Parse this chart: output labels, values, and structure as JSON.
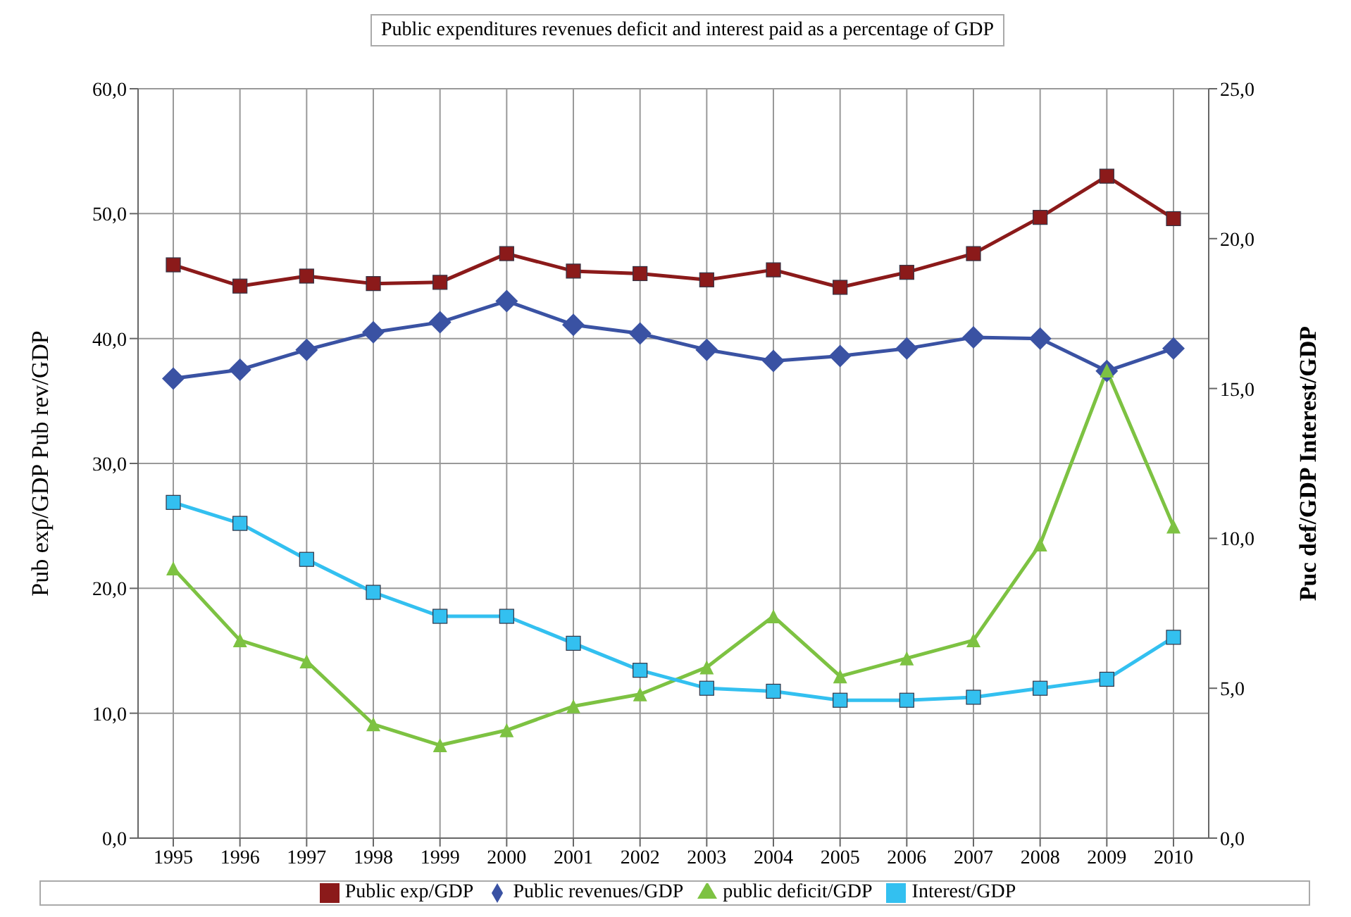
{
  "chart_data": {
    "type": "line",
    "title": "Public expenditures revenues deficit and interest paid as a percentage of GDP",
    "ylabel": "Pub exp/GDP Pub rev/GDP",
    "y2label": "Puc def/GDP Interest/GDP",
    "categories": [
      "1995",
      "1996",
      "1997",
      "1998",
      "1999",
      "2000",
      "2001",
      "2002",
      "2003",
      "2004",
      "2005",
      "2006",
      "2007",
      "2008",
      "2009",
      "2010"
    ],
    "series": [
      {
        "name": "Public exp/GDP",
        "color": "#8b1a1a",
        "marker": "square",
        "values": [
          45.9,
          44.2,
          45.0,
          44.4,
          44.5,
          46.8,
          45.4,
          45.2,
          44.7,
          45.5,
          44.1,
          45.3,
          46.8,
          49.7,
          53.0,
          49.6
        ]
      },
      {
        "name": "Public revenues/GDP",
        "color": "#3a52a3",
        "marker": "diamond",
        "values": [
          36.8,
          37.5,
          39.1,
          40.5,
          41.3,
          43.0,
          41.1,
          40.4,
          39.1,
          38.2,
          38.6,
          39.2,
          40.1,
          40.0,
          37.4,
          39.2
        ]
      },
      {
        "name": "public deficit/GDP",
        "color": "#7dc242",
        "marker": "triangle",
        "axis": "y2",
        "values": [
          9.0,
          6.6,
          5.9,
          3.8,
          3.1,
          3.6,
          4.4,
          4.8,
          5.7,
          7.4,
          5.4,
          6.0,
          6.6,
          9.8,
          15.6,
          10.4
        ]
      },
      {
        "name": "Interest/GDP",
        "color": "#33c0f0",
        "marker": "square",
        "axis": "y2",
        "values": [
          11.2,
          10.5,
          9.3,
          8.2,
          7.4,
          7.4,
          6.5,
          5.6,
          5.0,
          4.9,
          4.6,
          4.6,
          4.7,
          5.0,
          5.3,
          6.7
        ]
      }
    ],
    "ylim": [
      0,
      60
    ],
    "yticks": [
      {
        "value": 0,
        "label": "0,0"
      },
      {
        "value": 10,
        "label": "10,0"
      },
      {
        "value": 20,
        "label": "20,0"
      },
      {
        "value": 30,
        "label": "30,0"
      },
      {
        "value": 40,
        "label": "40,0"
      },
      {
        "value": 50,
        "label": "50,0"
      },
      {
        "value": 60,
        "label": "60,0"
      }
    ],
    "y2lim": [
      0,
      25
    ],
    "y2ticks": [
      {
        "value": 0,
        "label": "0,0"
      },
      {
        "value": 5,
        "label": "5,0"
      },
      {
        "value": 10,
        "label": "10,0"
      },
      {
        "value": 15,
        "label": "15,0"
      },
      {
        "value": 20,
        "label": "20,0"
      },
      {
        "value": 25,
        "label": "25,0"
      }
    ],
    "grid": true,
    "legend": "bottom",
    "line_style": "solid"
  }
}
